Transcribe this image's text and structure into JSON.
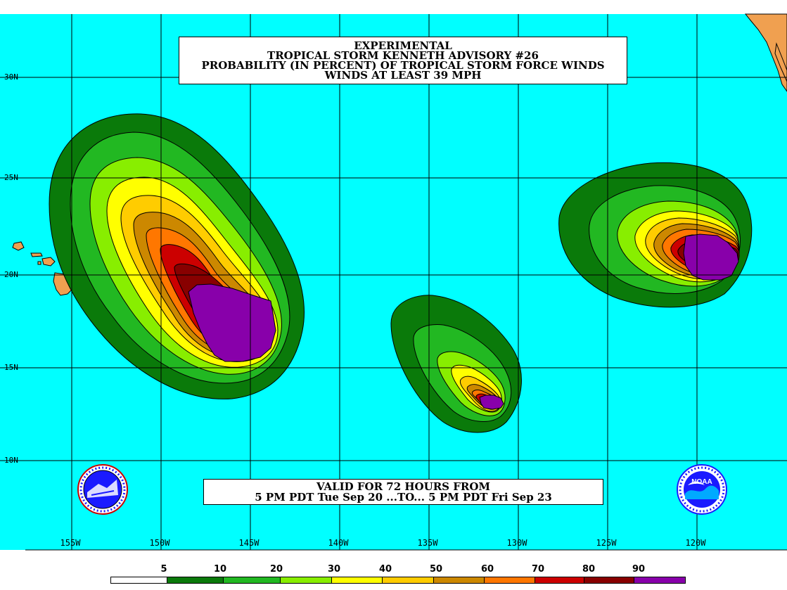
{
  "title": {
    "line1": "EXPERIMENTAL",
    "line2": "TROPICAL STORM KENNETH ADVISORY #26",
    "line3": "PROBABILITY (IN PERCENT) OF TROPICAL STORM FORCE WINDS",
    "line4": "WINDS AT LEAST 39 MPH"
  },
  "valid": {
    "line1": "VALID FOR 72 HOURS FROM",
    "line2": "5 PM PDT Tue Sep 20 ...TO... 5 PM PDT Fri Sep 23"
  },
  "lat_labels": [
    "30N",
    "25N",
    "20N",
    "15N",
    "10N"
  ],
  "lon_labels": [
    "155W",
    "150W",
    "145W",
    "140W",
    "135W",
    "130W",
    "125W",
    "120W"
  ],
  "legend": {
    "labels": [
      "5",
      "10",
      "20",
      "30",
      "40",
      "50",
      "60",
      "70",
      "80",
      "90"
    ],
    "colors": [
      "#ffffff",
      "#0a7a0a",
      "#22b822",
      "#88ee00",
      "#ffff00",
      "#ffcc00",
      "#cc8800",
      "#ff7700",
      "#cc0000",
      "#880000",
      "#8800aa"
    ]
  },
  "colors": {
    "ocean": "#00ffff",
    "land": "#f0a050",
    "grid": "#000000"
  },
  "logos": {
    "left": "nws-logo",
    "right": "noaa-logo",
    "noaa_text": "NOAA"
  }
}
